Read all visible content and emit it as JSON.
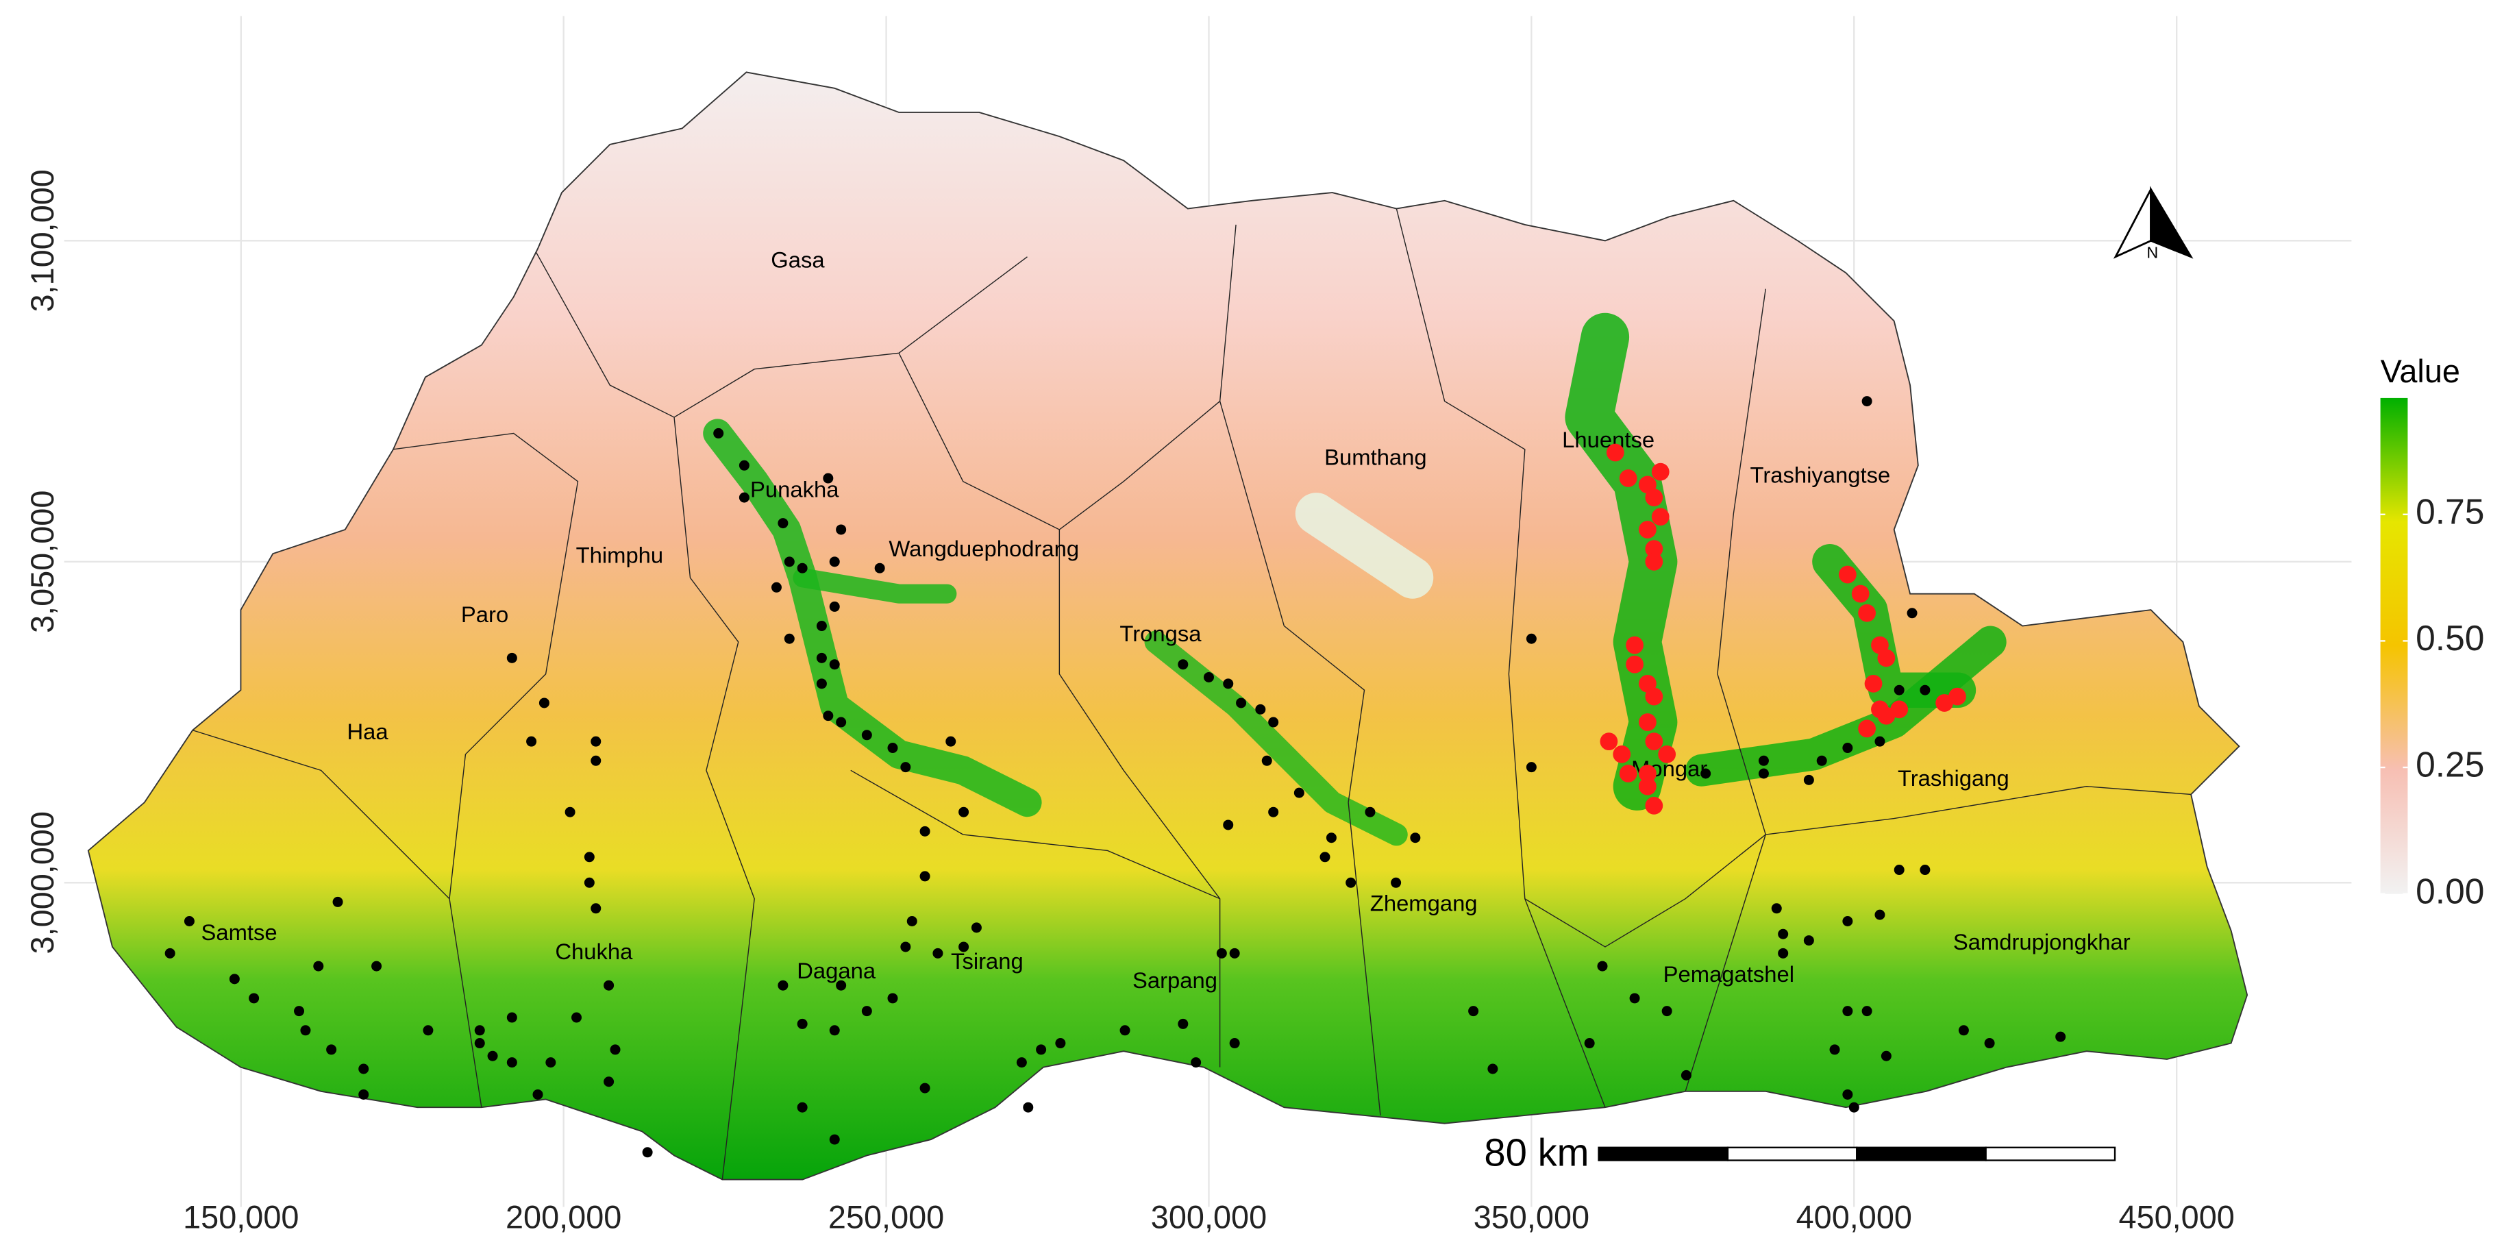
{
  "chart_data": {
    "type": "map",
    "xlim": [
      122600,
      477100
    ],
    "ylim": [
      2949500,
      3135000
    ],
    "xticks": [
      {
        "value": 150000,
        "label": "150,000"
      },
      {
        "value": 200000,
        "label": "200,000"
      },
      {
        "value": 250000,
        "label": "250,000"
      },
      {
        "value": 300000,
        "label": "300,000"
      },
      {
        "value": 350000,
        "label": "350,000"
      },
      {
        "value": 400000,
        "label": "400,000"
      },
      {
        "value": 450000,
        "label": "450,000"
      }
    ],
    "yticks": [
      {
        "value": 3000000,
        "label": "3,000,000"
      },
      {
        "value": 3050000,
        "label": "3,050,000"
      },
      {
        "value": 3100000,
        "label": "3,100,000"
      }
    ],
    "grid": true,
    "series": [
      {
        "color": "#000000",
        "x": [
          224000,
          228000,
          228000,
          234000,
          241000,
          243000,
          235000,
          237000,
          233000,
          242000,
          249000,
          242000,
          235000,
          240000,
          240000,
          242000,
          240000,
          241000,
          243000,
          247000,
          251000,
          253000,
          260000,
          256000,
          262000,
          256000,
          254000,
          253000,
          258000,
          262000,
          264000,
          251000,
          247000,
          243000,
          234000,
          237000,
          242000,
          192000,
          197000,
          195000,
          205000,
          205000,
          201000,
          204000,
          204000,
          205000,
          207000,
          202000,
          192000,
          187000,
          187000,
          179000,
          171000,
          165000,
          162000,
          152000,
          149000,
          142000,
          139000,
          159000,
          164000,
          169000,
          169000,
          160000,
          208000,
          207000,
          196000,
          192000,
          189000,
          198000,
          296000,
          300000,
          303000,
          305000,
          308000,
          310000,
          309000,
          314000,
          310000,
          319000,
          318000,
          322000,
          329000,
          332000,
          325000,
          303000,
          302000,
          304000,
          296000,
          304000,
          298000,
          287000,
          277000,
          274000,
          271000,
          272000,
          256000,
          242000,
          237000,
          213000,
          350000,
          350000,
          341000,
          344000,
          359000,
          366000,
          371000,
          377000,
          386000,
          386000,
          393000,
          395000,
          399000,
          404000,
          407000,
          409000,
          402000,
          411000,
          388000,
          389000,
          389000,
          393000,
          399000,
          404000,
          407000,
          411000,
          399000,
          402000,
          397000,
          405000,
          399000,
          400000,
          374000,
          417000,
          421000,
          432000,
          361000
        ],
        "y": [
          3070000,
          3065000,
          3060000,
          3056000,
          3063000,
          3055000,
          3050000,
          3049000,
          3046000,
          3050000,
          3049000,
          3043000,
          3038000,
          3040000,
          3035000,
          3034000,
          3031000,
          3026000,
          3025000,
          3023000,
          3021000,
          3018000,
          3022000,
          3008000,
          3011000,
          3001000,
          2994000,
          2990000,
          2989000,
          2990000,
          2993000,
          2982000,
          2980000,
          2984000,
          2984000,
          2978000,
          2977000,
          3035000,
          3028000,
          3022000,
          3022000,
          3019000,
          3011000,
          3004000,
          3000000,
          2996000,
          2984000,
          2979000,
          2979000,
          2977000,
          2975000,
          2977000,
          2987000,
          2997000,
          2987000,
          2982000,
          2985000,
          2994000,
          2989000,
          2980000,
          2974000,
          2971000,
          2967000,
          2977000,
          2974000,
          2969000,
          2967000,
          2972000,
          2973000,
          2972000,
          3034000,
          3032000,
          3031000,
          3028000,
          3027000,
          3025000,
          3019000,
          3014000,
          3011000,
          3007000,
          3004000,
          3000000,
          3000000,
          3007000,
          3011000,
          3009000,
          2989000,
          2989000,
          2978000,
          2975000,
          2972000,
          2977000,
          2975000,
          2974000,
          2972000,
          2965000,
          2968000,
          2960000,
          2965000,
          2958000,
          3038000,
          3018000,
          2980000,
          2971000,
          2975000,
          2982000,
          2980000,
          3017000,
          3019000,
          3017000,
          3016000,
          3019000,
          3021000,
          3022000,
          3030000,
          3042000,
          3075000,
          3030000,
          2996000,
          2992000,
          2989000,
          2991000,
          2994000,
          2995000,
          3002000,
          3002000,
          2980000,
          2980000,
          2974000,
          2973000,
          2967000,
          2965000,
          2970000,
          2977000,
          2975000,
          2976000,
          2987000
        ]
      },
      {
        "color": "#ff1a1a",
        "x": [
          363000,
          365000,
          368000,
          370000,
          369000,
          370000,
          368000,
          369000,
          369000,
          366000,
          366000,
          368000,
          369000,
          368000,
          369000,
          371000,
          362000,
          364000,
          365000,
          368000,
          368000,
          369000,
          399000,
          401000,
          402000,
          404000,
          405000,
          403000,
          404000,
          402000,
          405000,
          407000,
          414000,
          416000
        ],
        "y": [
          3067000,
          3063000,
          3062000,
          3064000,
          3060000,
          3057000,
          3055000,
          3052000,
          3050000,
          3037000,
          3034000,
          3031000,
          3029000,
          3025000,
          3022000,
          3020000,
          3022000,
          3020000,
          3017000,
          3017000,
          3015000,
          3012000,
          3048000,
          3045000,
          3042000,
          3037000,
          3035000,
          3031000,
          3027000,
          3024000,
          3026000,
          3027000,
          3028000,
          3029000
        ]
      }
    ],
    "legend": {
      "title": "Value",
      "lim": [
        0,
        0.98
      ],
      "ticks": [
        {
          "value": 0,
          "label": "0.00"
        },
        {
          "value": 0.25,
          "label": "0.25"
        },
        {
          "value": 0.5,
          "label": "0.50"
        },
        {
          "value": 0.75,
          "label": "0.75"
        }
      ],
      "colors": [
        "#f2f2f2",
        "#f7bfb3",
        "#f5c400",
        "#e6e600",
        "#00b000"
      ]
    },
    "scale_bar": {
      "label": "80 km",
      "length": 80000,
      "segments": 4
    },
    "north_label": "N",
    "districts": [
      "Gasa",
      "Punakha",
      "Wangduephodrang",
      "Thimphu",
      "Paro",
      "Haa",
      "Samtse",
      "Chukha",
      "Dagana",
      "Tsirang",
      "Sarpang",
      "Trongsa",
      "Bumthang",
      "Zhemgang",
      "Lhuentse",
      "Mongar",
      "Trashiyangtse",
      "Trashigang",
      "Pemagatshel",
      "Samdrupjongkhar"
    ]
  }
}
